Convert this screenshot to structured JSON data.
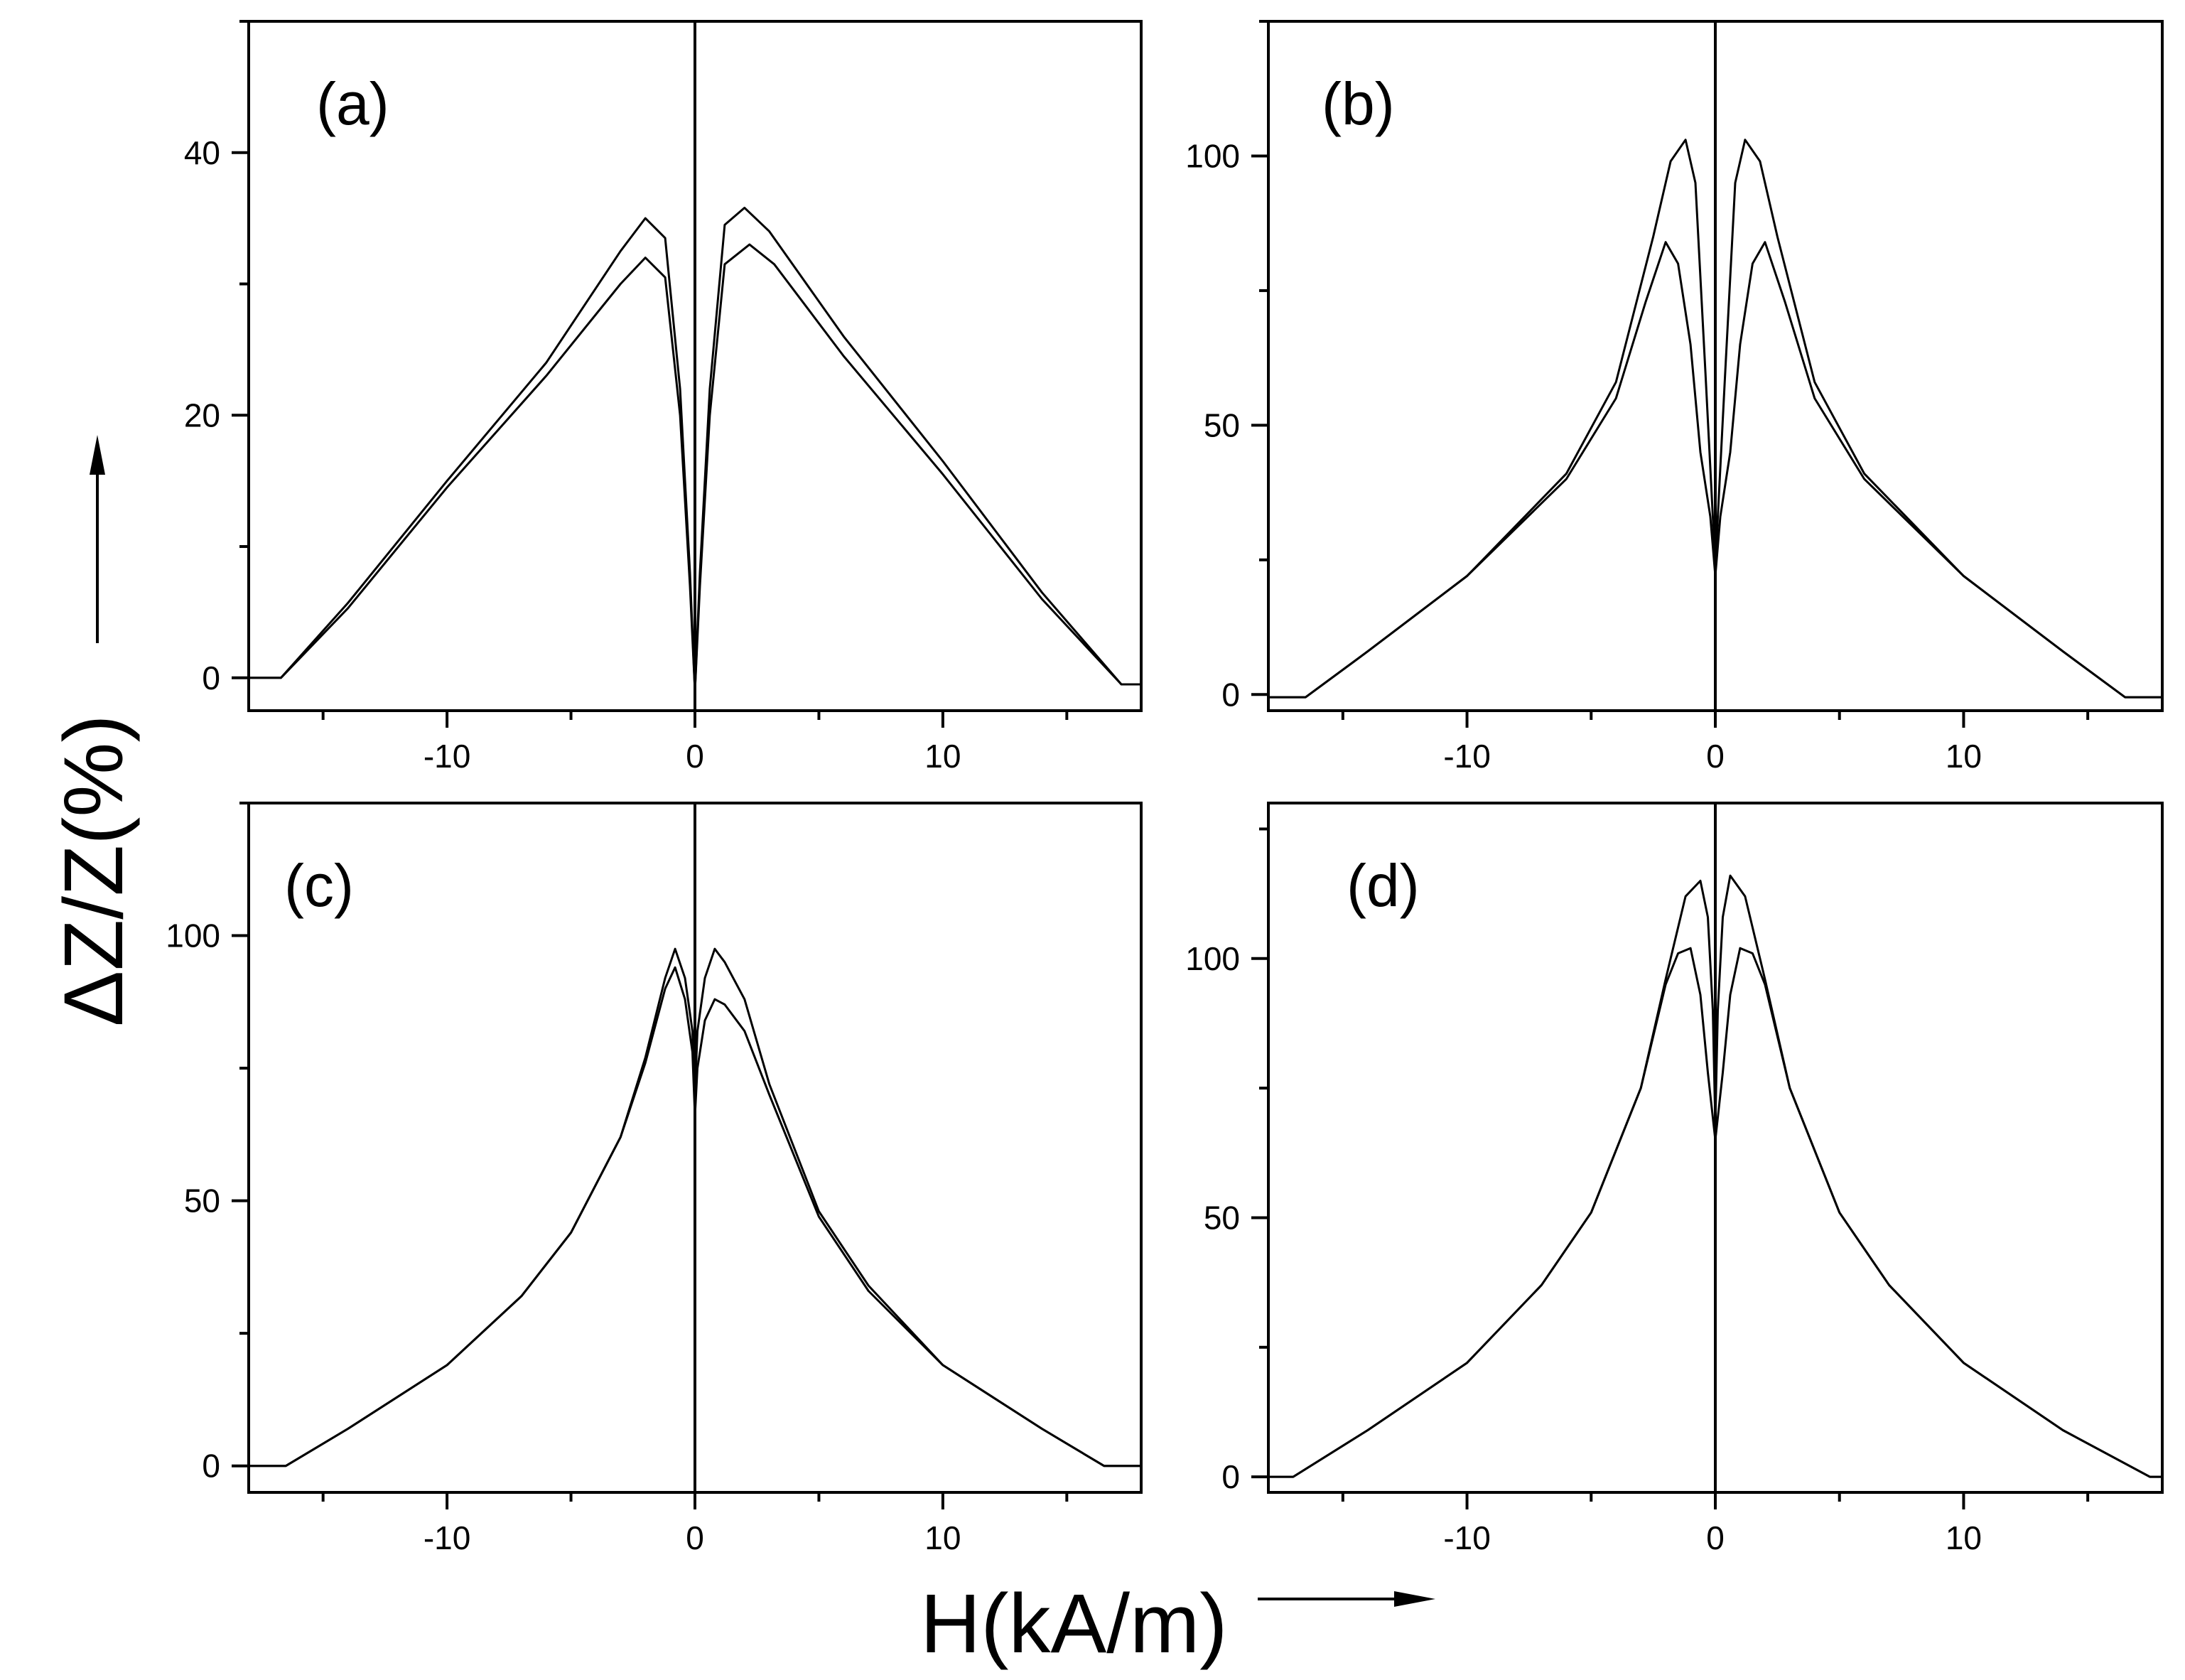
{
  "figure": {
    "ylabel": "ΔZ/Z(%)",
    "xlabel": "H(kA/m)"
  },
  "chart_data": [
    {
      "type": "line",
      "panel_label": "(a)",
      "xlim": [
        -18,
        18
      ],
      "ylim": [
        -2.5,
        50
      ],
      "xticks": [
        -10,
        0,
        10
      ],
      "xtick_labels": [
        "-10",
        "0",
        "10"
      ],
      "yticks": [
        0,
        20,
        40
      ],
      "ytick_labels": [
        "0",
        "20",
        "40"
      ],
      "series": [
        {
          "name": "upper",
          "x": [
            -18,
            -16.7,
            -14,
            -10,
            -6,
            -3,
            -2,
            -1.2,
            -0.6,
            -0.2,
            0,
            0.2,
            0.6,
            1.2,
            2,
            3,
            6,
            10,
            14,
            17.2,
            18
          ],
          "y": [
            0,
            0,
            5.7,
            15,
            24,
            32.5,
            35,
            33.5,
            22,
            8,
            -1,
            8,
            22,
            34.5,
            35.8,
            34,
            26,
            16.5,
            6.5,
            -0.5,
            -0.5
          ]
        },
        {
          "name": "lower",
          "x": [
            -18,
            -16.7,
            -14,
            -10,
            -6,
            -3,
            -2,
            -1.2,
            -0.6,
            -0.2,
            0,
            0.2,
            0.6,
            1.2,
            2.2,
            3.2,
            6,
            10,
            14,
            17.2,
            18
          ],
          "y": [
            0,
            0,
            5.3,
            14.5,
            23,
            30,
            32,
            30.5,
            20,
            7,
            -1,
            7,
            20,
            31.5,
            33,
            31.5,
            24.5,
            15.5,
            6,
            -0.5,
            -0.5
          ]
        }
      ]
    },
    {
      "type": "line",
      "panel_label": "(b)",
      "xlim": [
        -18,
        18
      ],
      "ylim": [
        -3,
        125
      ],
      "xticks": [
        -10,
        0,
        10
      ],
      "xtick_labels": [
        "-10",
        "0",
        "10"
      ],
      "yticks": [
        0,
        50,
        100
      ],
      "ytick_labels": [
        "0",
        "50",
        "100"
      ],
      "series": [
        {
          "name": "upper",
          "x": [
            -18,
            -16.5,
            -14,
            -10,
            -6,
            -4,
            -2.5,
            -1.8,
            -1.2,
            -0.8,
            -0.4,
            -0.1,
            0,
            0.1,
            0.4,
            0.8,
            1.2,
            1.8,
            2.5,
            4,
            6,
            10,
            14,
            16.5,
            18
          ],
          "y": [
            -0.5,
            -0.5,
            8,
            22,
            41,
            58,
            85,
            99,
            103,
            95,
            60,
            33,
            22,
            33,
            60,
            95,
            103,
            99,
            85,
            58,
            41,
            22,
            8,
            -0.5,
            -0.5
          ]
        },
        {
          "name": "lower",
          "x": [
            -18,
            -16.5,
            -14,
            -10,
            -6,
            -4,
            -2.8,
            -2,
            -1.5,
            -1,
            -0.6,
            -0.2,
            0,
            0.2,
            0.6,
            1,
            1.5,
            2,
            2.8,
            4,
            6,
            10,
            14,
            16.5,
            18
          ],
          "y": [
            -0.5,
            -0.5,
            8,
            22,
            40,
            55,
            73,
            84,
            80,
            65,
            45,
            33,
            22,
            33,
            45,
            65,
            80,
            84,
            73,
            55,
            40,
            22,
            8,
            -0.5,
            -0.5
          ]
        }
      ]
    },
    {
      "type": "line",
      "panel_label": "(c)",
      "xlim": [
        -18,
        18
      ],
      "ylim": [
        -5,
        125
      ],
      "xticks": [
        -10,
        0,
        10
      ],
      "xtick_labels": [
        "-10",
        "0",
        "10"
      ],
      "yticks": [
        0,
        50,
        100
      ],
      "ytick_labels": [
        "0",
        "50",
        "100"
      ],
      "series": [
        {
          "name": "upper",
          "x": [
            -18,
            -16.5,
            -14,
            -10,
            -7,
            -5,
            -3,
            -2,
            -1.2,
            -0.8,
            -0.4,
            -0.1,
            0,
            0.1,
            0.4,
            0.8,
            1.2,
            2,
            3,
            5,
            7,
            10,
            14,
            16.5,
            18
          ],
          "y": [
            0,
            0,
            7,
            19,
            32,
            44,
            62,
            77,
            92,
            97.5,
            92,
            82,
            70,
            82,
            92,
            97.5,
            95,
            88,
            72,
            48,
            34,
            19,
            7,
            0,
            0
          ]
        },
        {
          "name": "lower",
          "x": [
            -18,
            -16.5,
            -14,
            -10,
            -7,
            -5,
            -3,
            -2,
            -1.2,
            -0.8,
            -0.4,
            -0.1,
            0,
            0.1,
            0.4,
            0.8,
            1.2,
            2,
            3,
            5,
            7,
            10,
            14,
            16.5,
            18
          ],
          "y": [
            0,
            0,
            7,
            19,
            32,
            44,
            62,
            76,
            90,
            94,
            88,
            78,
            66,
            75,
            84,
            88,
            87,
            82,
            70,
            47,
            33,
            19,
            7,
            0,
            0
          ]
        }
      ]
    },
    {
      "type": "line",
      "panel_label": "(d)",
      "xlim": [
        -18,
        18
      ],
      "ylim": [
        -3,
        130
      ],
      "xticks": [
        -10,
        0,
        10
      ],
      "xtick_labels": [
        "-10",
        "0",
        "10"
      ],
      "yticks": [
        0,
        50,
        100
      ],
      "ytick_labels": [
        "0",
        "50",
        "100"
      ],
      "series": [
        {
          "name": "upper",
          "x": [
            -18,
            -17,
            -14,
            -10,
            -7,
            -5,
            -3,
            -2,
            -1.2,
            -0.6,
            -0.3,
            -0.1,
            0,
            0.1,
            0.3,
            0.6,
            1.2,
            2,
            3,
            5,
            7,
            10,
            14,
            17.5,
            18
          ],
          "y": [
            0,
            0,
            9,
            22,
            37,
            51,
            75,
            96,
            112,
            115,
            108,
            90,
            68,
            90,
            108,
            116,
            112,
            96,
            75,
            51,
            37,
            22,
            9,
            0,
            0
          ]
        },
        {
          "name": "lower",
          "x": [
            -18,
            -17,
            -14,
            -10,
            -7,
            -5,
            -3,
            -2,
            -1.5,
            -1,
            -0.6,
            -0.3,
            0,
            0.3,
            0.6,
            1,
            1.5,
            2,
            3,
            5,
            7,
            10,
            14,
            17.5,
            18
          ],
          "y": [
            0,
            0,
            9,
            22,
            37,
            51,
            75,
            95,
            101,
            102,
            93,
            78,
            65,
            78,
            93,
            102,
            101,
            95,
            75,
            51,
            37,
            22,
            9,
            0,
            0
          ]
        }
      ]
    }
  ]
}
